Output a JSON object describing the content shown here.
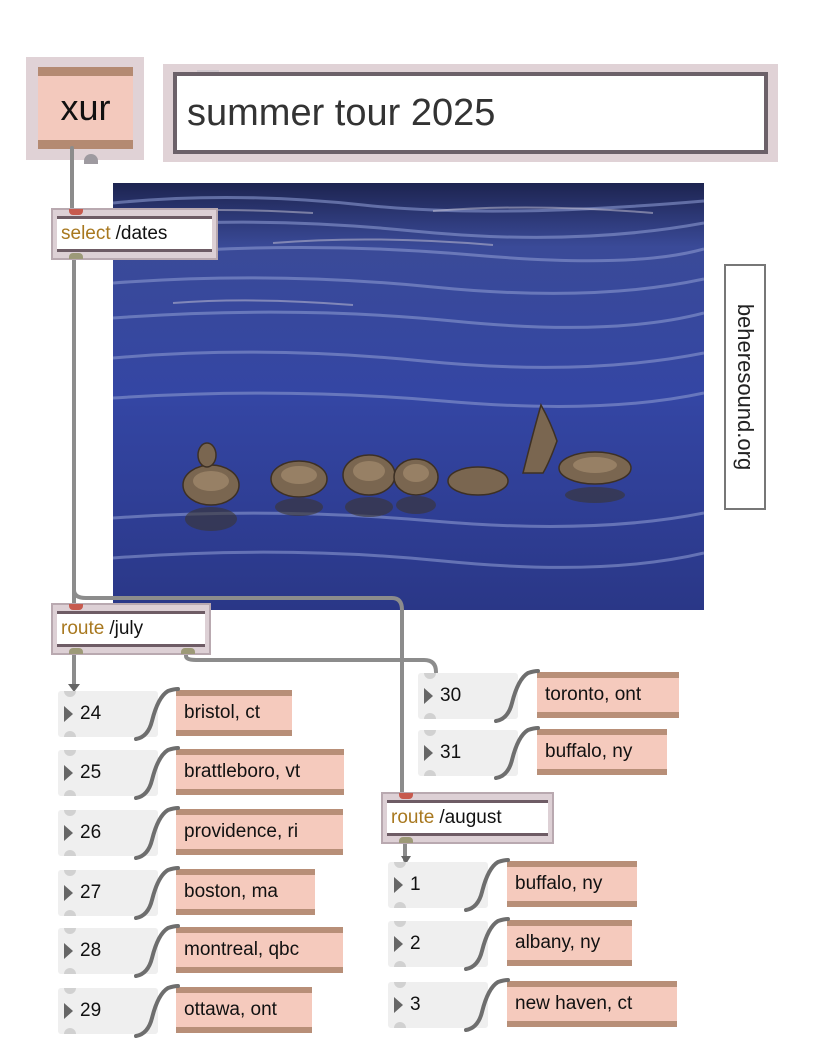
{
  "patch": {
    "header_message": "xur",
    "title_comment": "summer tour 2025",
    "side_comment": "beheresound.org",
    "select_object": {
      "keyword": "select",
      "arg": "/dates"
    },
    "route_july": {
      "keyword": "route",
      "arg": "/july"
    },
    "route_august": {
      "keyword": "route",
      "arg": "/august"
    },
    "july": [
      {
        "day": "24",
        "city": "bristol, ct"
      },
      {
        "day": "25",
        "city": "brattleboro, vt"
      },
      {
        "day": "26",
        "city": "providence, ri"
      },
      {
        "day": "27",
        "city": "boston, ma"
      },
      {
        "day": "28",
        "city": "montreal, qbc"
      },
      {
        "day": "29",
        "city": "ottawa, ont"
      },
      {
        "day": "30",
        "city": "toronto, ont"
      },
      {
        "day": "31",
        "city": "buffalo, ny"
      }
    ],
    "august": [
      {
        "day": "1",
        "city": "buffalo, ny"
      },
      {
        "day": "2",
        "city": "albany, ny"
      },
      {
        "day": "3",
        "city": "new haven, ct"
      }
    ]
  },
  "colors": {
    "water": "#2e3f8f",
    "message_fill": "#f5cabd",
    "message_border": "#b88f78",
    "keyword": "#a8781f",
    "patch_cord": "#8c8c8c"
  },
  "icons": {
    "photo": "ducks-on-water-photo",
    "number_arrow": "triangle-right-icon"
  }
}
